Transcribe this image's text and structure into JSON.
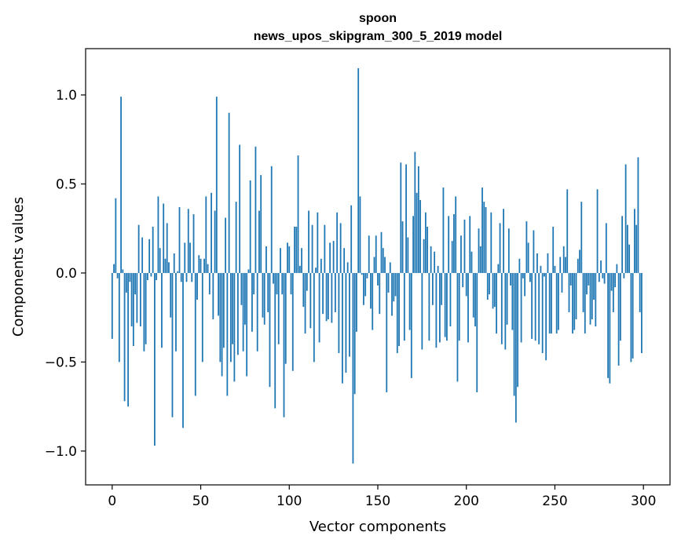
{
  "chart_data": {
    "type": "bar",
    "title": "spoon",
    "subtitle": "news_upos_skipgram_300_5_2019 model",
    "xlabel": "Vector components",
    "ylabel": "Components values",
    "xlim": [
      -15,
      315
    ],
    "ylim": [
      -1.19,
      1.26
    ],
    "xticks": [
      0,
      50,
      100,
      150,
      200,
      250,
      300
    ],
    "yticks": [
      -1.0,
      -0.5,
      0.0,
      0.5,
      1.0
    ],
    "ytick_labels": [
      "−1.0",
      "−0.5",
      "0.0",
      "0.5",
      "1.0"
    ],
    "bar_color": "#1f77b4",
    "grid": false,
    "legend": "none",
    "series": [
      {
        "values": [
          -0.37,
          0.05,
          0.42,
          -0.03,
          -0.5,
          0.99,
          0.02,
          -0.72,
          -0.11,
          -0.75,
          -0.05,
          -0.3,
          -0.41,
          -0.12,
          -0.28,
          0.27,
          -0.3,
          0.2,
          -0.44,
          -0.4,
          -0.04,
          0.19,
          -0.02,
          0.26,
          -0.97,
          -0.04,
          0.43,
          0.14,
          -0.42,
          0.39,
          0.08,
          0.28,
          0.06,
          -0.25,
          -0.81,
          0.11,
          -0.44,
          0.01,
          0.37,
          -0.05,
          -0.87,
          0.17,
          -0.05,
          0.36,
          0.17,
          -0.05,
          0.33,
          -0.69,
          -0.15,
          0.1,
          0.08,
          -0.5,
          0.08,
          0.43,
          0.05,
          -0.12,
          0.45,
          -0.26,
          0.35,
          0.99,
          -0.24,
          -0.5,
          -0.58,
          -0.42,
          0.31,
          -0.69,
          0.9,
          -0.5,
          -0.4,
          -0.61,
          0.4,
          -0.46,
          0.72,
          -0.18,
          -0.44,
          -0.29,
          -0.58,
          0.02,
          0.52,
          -0.33,
          -0.12,
          0.71,
          -0.44,
          0.35,
          0.55,
          -0.25,
          -0.29,
          0.15,
          -0.22,
          -0.64,
          0.6,
          -0.06,
          -0.76,
          -0.12,
          -0.4,
          0.14,
          -0.12,
          -0.81,
          -0.51,
          0.17,
          0.15,
          -0.12,
          -0.55,
          0.26,
          0.26,
          0.66,
          0.04,
          0.14,
          -0.19,
          -0.34,
          -0.1,
          0.35,
          -0.31,
          0.27,
          -0.5,
          0.03,
          0.34,
          -0.39,
          0.08,
          -0.23,
          0.27,
          -0.27,
          -0.26,
          0.17,
          -0.28,
          0.18,
          -0.22,
          0.34,
          -0.45,
          0.28,
          -0.62,
          0.14,
          -0.56,
          0.06,
          -0.47,
          0.38,
          -1.07,
          -0.68,
          -0.33,
          1.15,
          0.43,
          -0.01,
          -0.18,
          -0.13,
          -0.03,
          0.21,
          -0.2,
          -0.32,
          0.09,
          0.21,
          -0.07,
          -0.23,
          0.23,
          0.14,
          0.09,
          -0.67,
          -0.11,
          0.06,
          -0.24,
          -0.16,
          -0.13,
          -0.45,
          -0.41,
          0.62,
          0.29,
          -0.38,
          0.61,
          0.2,
          -0.32,
          -0.59,
          0.32,
          0.68,
          0.45,
          0.6,
          0.41,
          -0.43,
          0.19,
          0.34,
          0.26,
          -0.38,
          0.15,
          -0.18,
          0.12,
          -0.42,
          0.04,
          -0.39,
          -0.18,
          0.48,
          -0.36,
          -0.38,
          0.32,
          -0.3,
          0.18,
          0.33,
          0.43,
          -0.61,
          -0.38,
          0.21,
          -0.08,
          0.3,
          -0.13,
          -0.39,
          0.32,
          0.12,
          -0.25,
          -0.3,
          -0.67,
          0.25,
          0.15,
          0.48,
          0.4,
          0.37,
          -0.15,
          -0.12,
          0.34,
          -0.2,
          -0.19,
          -0.34,
          0.05,
          0.28,
          -0.4,
          0.36,
          -0.43,
          -0.29,
          0.25,
          -0.07,
          -0.32,
          -0.69,
          -0.84,
          -0.64,
          0.08,
          -0.39,
          -0.03,
          -0.13,
          0.29,
          0.17,
          -0.05,
          -0.37,
          0.24,
          -0.38,
          0.11,
          -0.4,
          0.04,
          -0.45,
          -0.02,
          -0.49,
          0.11,
          -0.34,
          -0.34,
          0.26,
          0.04,
          -0.34,
          -0.32,
          0.09,
          -0.11,
          0.15,
          0.09,
          0.47,
          -0.22,
          -0.07,
          -0.34,
          -0.32,
          -0.26,
          0.08,
          0.13,
          0.4,
          -0.22,
          -0.34,
          -0.12,
          -0.07,
          -0.29,
          -0.26,
          -0.15,
          -0.3,
          0.47,
          -0.05,
          0.07,
          -0.03,
          -0.06,
          0.28,
          -0.59,
          -0.62,
          -0.1,
          -0.22,
          -0.08,
          0.05,
          -0.52,
          -0.38,
          0.32,
          -0.03,
          0.61,
          0.27,
          0.16,
          -0.5,
          -0.48,
          0.36,
          0.27,
          0.65,
          -0.22,
          -0.45
        ]
      }
    ]
  }
}
